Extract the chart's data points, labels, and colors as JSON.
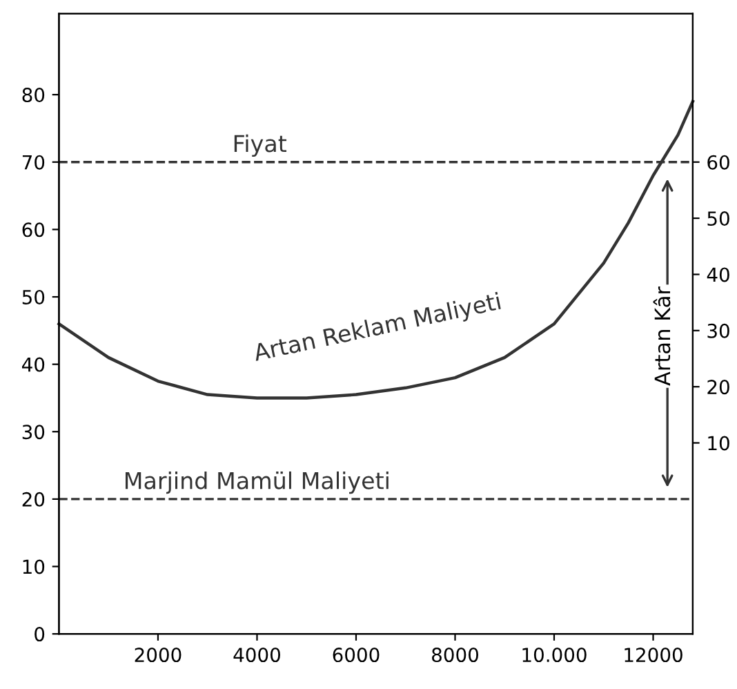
{
  "chart_data": {
    "type": "line",
    "x": [
      0,
      1000,
      2000,
      3000,
      4000,
      5000,
      6000,
      7000,
      8000,
      9000,
      10000,
      11000,
      11500,
      12000,
      12500,
      12800
    ],
    "series": [
      {
        "name": "Artan Reklam Maliyeti",
        "color": "#333333",
        "values": [
          46,
          41,
          37.5,
          35.5,
          35,
          35,
          35.5,
          36.5,
          38,
          41,
          46,
          55,
          61,
          68,
          74,
          79
        ]
      }
    ],
    "xlim": [
      0,
      12800
    ],
    "xticks": [
      2000,
      4000,
      6000,
      8000,
      {
        "value": 10000,
        "label": "10.000"
      },
      12000
    ],
    "ylim": [
      0,
      92
    ],
    "yticks": [
      0,
      10,
      20,
      30,
      40,
      50,
      60,
      70,
      80
    ],
    "y2lim": [
      -24,
      86.4
    ],
    "y2ticks": [
      10,
      20,
      30,
      40,
      50,
      60
    ],
    "ref_lines": [
      {
        "axis": "y",
        "value": 70,
        "label": "Fiyat",
        "color": "#333333",
        "line_style": "dashed"
      },
      {
        "axis": "y",
        "value": 20,
        "label": "Marjind Mamül Maliyeti",
        "color": "#333333",
        "line_style": "dashed"
      }
    ],
    "annotations": [
      "Artan Kâr"
    ],
    "grid": false,
    "legend": false,
    "marker": "none",
    "line_style": "solid"
  }
}
